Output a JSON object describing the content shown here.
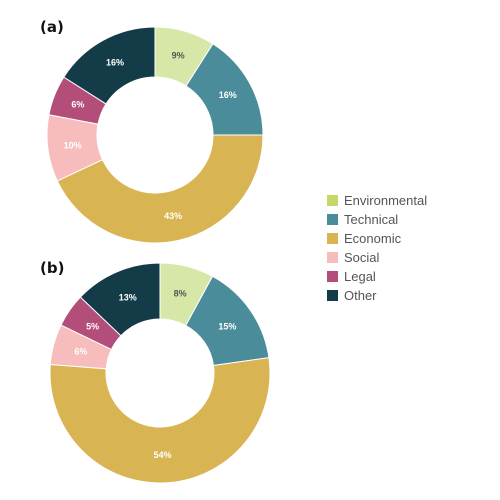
{
  "chart_data": [
    {
      "type": "pie",
      "panel_label": "(a)",
      "categories": [
        "Environmental",
        "Technical",
        "Economic",
        "Social",
        "Legal",
        "Other"
      ],
      "values": [
        9,
        16,
        43,
        10,
        6,
        16
      ],
      "labels": [
        "9%",
        "16%",
        "43%",
        "10%",
        "6%",
        "16%"
      ],
      "donut": true
    },
    {
      "type": "pie",
      "panel_label": "(b)",
      "categories": [
        "Environmental",
        "Technical",
        "Economic",
        "Social",
        "Legal",
        "Other"
      ],
      "values": [
        8,
        15,
        54,
        6,
        5,
        13
      ],
      "labels": [
        "8%",
        "15%",
        "54%",
        "6%",
        "5%",
        "13%"
      ],
      "donut": true
    }
  ],
  "legend": {
    "placement": "right",
    "items": [
      {
        "label": "Environmental",
        "color": "#c4d96a"
      },
      {
        "label": "Technical",
        "color": "#4a8c9a"
      },
      {
        "label": "Economic",
        "color": "#d8b452"
      },
      {
        "label": "Social",
        "color": "#f7bcbc"
      },
      {
        "label": "Legal",
        "color": "#b34d7a"
      },
      {
        "label": "Other",
        "color": "#143c48"
      }
    ]
  },
  "slice_fill_colors": [
    "#d6e7a8",
    "#4a8c9a",
    "#d8b452",
    "#f7bcbc",
    "#b34d7a",
    "#143c48"
  ],
  "slice_label_colors": [
    "#555555",
    "#ffffff",
    "#ffffff",
    "#ffffff",
    "#ffffff",
    "#ffffff"
  ]
}
